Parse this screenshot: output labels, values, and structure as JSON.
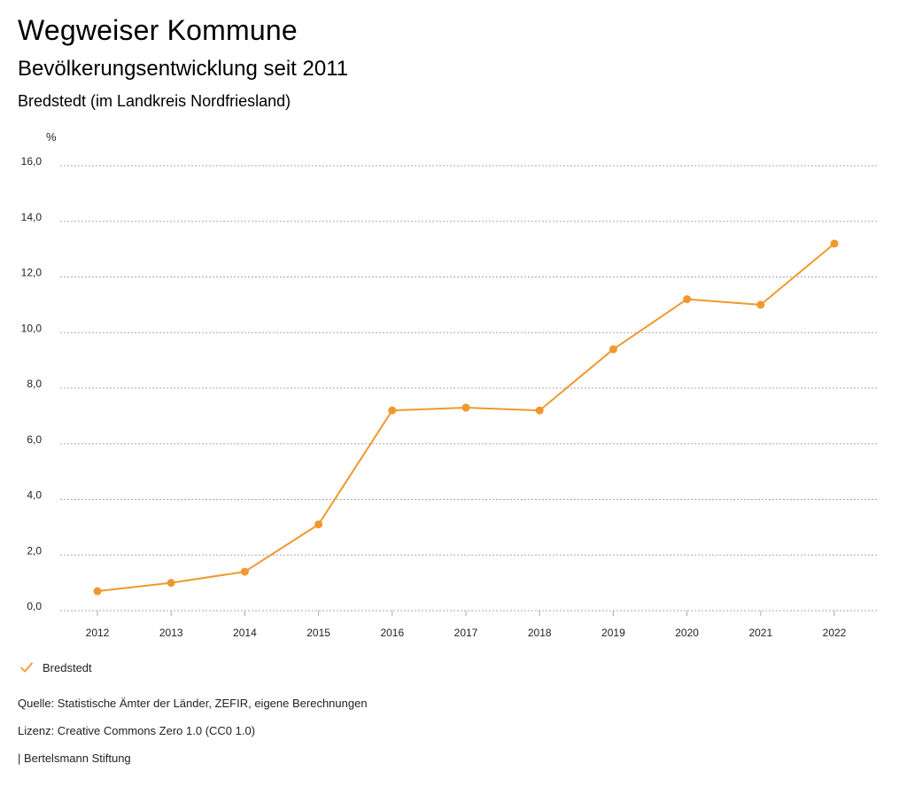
{
  "header": {
    "title": "Wegweiser Kommune",
    "subtitle": "Bevölkerungsentwicklung seit 2011",
    "region": "Bredstedt (im Landkreis Nordfriesland)"
  },
  "legend": {
    "label": "Bredstedt",
    "icon": "check-icon"
  },
  "footer": {
    "source": "Quelle: Statistische Ämter der Länder, ZEFIR, eigene Berechnungen",
    "license": "Lizenz: Creative Commons Zero 1.0 (CC0 1.0)",
    "publisher": "| Bertelsmann Stiftung"
  },
  "chart_data": {
    "type": "line",
    "ylabel": "%",
    "x": [
      "2012",
      "2013",
      "2014",
      "2015",
      "2016",
      "2017",
      "2018",
      "2019",
      "2020",
      "2021",
      "2022"
    ],
    "series": [
      {
        "name": "Bredstedt",
        "values": [
          0.7,
          1.0,
          1.4,
          3.1,
          7.2,
          7.3,
          7.2,
          9.4,
          11.2,
          11.0,
          13.2
        ],
        "color": "#f0982e"
      }
    ],
    "ylim": [
      0,
      16
    ],
    "yticks": [
      "0,0",
      "2,0",
      "4,0",
      "6,0",
      "8,0",
      "10,0",
      "12,0",
      "14,0",
      "16,0"
    ],
    "grid": true,
    "legend_position": "bottom-left"
  }
}
